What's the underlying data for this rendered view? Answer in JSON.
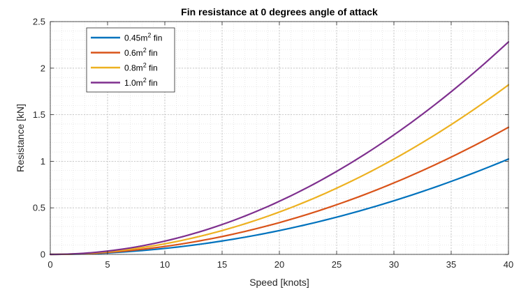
{
  "chart_data": {
    "type": "line",
    "title": "Fin resistance at 0 degrees angle of attack",
    "xlabel": "Speed [knots]",
    "ylabel": "Resistance [kN]",
    "xlim": [
      0,
      40
    ],
    "ylim": [
      0,
      2.5
    ],
    "xticks": [
      0,
      5,
      10,
      15,
      20,
      25,
      30,
      35,
      40
    ],
    "yticks": [
      0,
      0.5,
      1,
      1.5,
      2,
      2.5
    ],
    "x_tick_labels": [
      "0",
      "5",
      "10",
      "15",
      "20",
      "25",
      "30",
      "35",
      "40"
    ],
    "y_tick_labels": [
      "0",
      "0.5",
      "1",
      "1.5",
      "2",
      "2.5"
    ],
    "grid": "major and minor, dotted",
    "legend_position": "top-left",
    "x": [
      0,
      5,
      10,
      15,
      20,
      25,
      30,
      35,
      40
    ],
    "series": [
      {
        "name": "0.45m² fin",
        "legend_base": "0.45m",
        "legend_sup": "2",
        "legend_suffix": " fin",
        "color": "#0072bd",
        "values": [
          0,
          0.016,
          0.064,
          0.144,
          0.256,
          0.4,
          0.576,
          0.784,
          1.024
        ]
      },
      {
        "name": "0.6m² fin",
        "legend_base": "0.6m",
        "legend_sup": "2",
        "legend_suffix": " fin",
        "color": "#d95319",
        "values": [
          0,
          0.021,
          0.085,
          0.192,
          0.341,
          0.533,
          0.768,
          1.045,
          1.365
        ]
      },
      {
        "name": "0.8m² fin",
        "legend_base": "0.8m",
        "legend_sup": "2",
        "legend_suffix": " fin",
        "color": "#edb120",
        "values": [
          0,
          0.028,
          0.114,
          0.256,
          0.455,
          0.711,
          1.024,
          1.394,
          1.82
        ]
      },
      {
        "name": "1.0m² fin",
        "legend_base": "1.0m",
        "legend_sup": "2",
        "legend_suffix": " fin",
        "color": "#7e2f8e",
        "values": [
          0,
          0.036,
          0.143,
          0.321,
          0.57,
          0.891,
          1.283,
          1.747,
          2.282
        ]
      }
    ]
  }
}
